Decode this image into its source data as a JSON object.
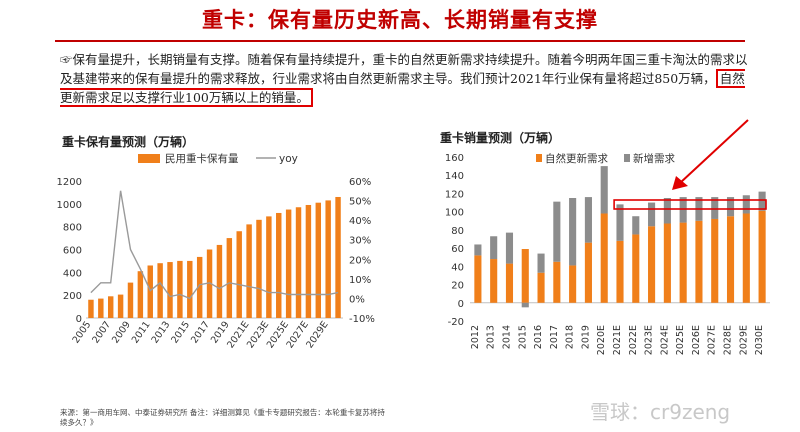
{
  "header": {
    "title": "重卡：保有量历史新高、长期销量有支撑"
  },
  "body": {
    "part1": "☞保有量提升，长期销量有支撑。随着保有量持续提升，重卡的自然更新需求持续提升。随着今明两年国三重卡淘汰的需求以及基建带来的保有量提升的需求释放，行业需求将由自然更新需求主导。我们预计2021年行业保有量将超过850万辆，",
    "highlight": "自然更新需求足以支撑行业100万辆以上的销量。"
  },
  "colors": {
    "orange": "#f07f1a",
    "gray": "#8c8c8c",
    "red": "#e00000",
    "line": "#9a9a9a"
  },
  "chart_data": [
    {
      "type": "bar+line",
      "title": "重卡保有量预测（万辆）",
      "legend": [
        "民用重卡保有量",
        "yoy"
      ],
      "categories": [
        "2005",
        "2006",
        "2007",
        "2008",
        "2009",
        "2010",
        "2011",
        "2012",
        "2013",
        "2014",
        "2015",
        "2016",
        "2017",
        "2018",
        "2019",
        "2020E",
        "2021E",
        "2022E",
        "2023E",
        "2024E",
        "2025E",
        "2026E",
        "2027E",
        "2028E",
        "2029E",
        "2030E"
      ],
      "x_tick_labels": [
        "2005",
        "2007",
        "2009",
        "2011",
        "2013",
        "2015",
        "2017",
        "2019",
        "2021E",
        "2023E",
        "2025E",
        "2027E",
        "2029E"
      ],
      "bar_values": [
        160,
        170,
        190,
        205,
        310,
        410,
        460,
        480,
        490,
        500,
        500,
        535,
        600,
        640,
        700,
        760,
        820,
        860,
        890,
        920,
        950,
        970,
        990,
        1010,
        1030,
        1060
      ],
      "yoy": [
        3,
        8,
        8,
        55,
        25,
        15,
        4,
        8,
        1,
        2,
        0,
        7,
        8,
        5,
        8,
        7,
        6,
        5,
        3,
        3,
        2,
        2,
        2,
        2,
        2,
        3
      ],
      "ylim_left": [
        0,
        1200
      ],
      "yticks_left": [
        "0",
        "200",
        "400",
        "600",
        "800",
        "1000",
        "1200"
      ],
      "ylim_right": [
        -10,
        60
      ],
      "yticks_right": [
        "-10%",
        "0%",
        "10%",
        "20%",
        "30%",
        "40%",
        "50%",
        "60%"
      ]
    },
    {
      "type": "stacked-bar",
      "title": "重卡销量预测（万辆）",
      "legend": [
        "自然更新需求",
        "新增需求"
      ],
      "categories": [
        "2012",
        "2013",
        "2014",
        "2015",
        "2016",
        "2017",
        "2018",
        "2019",
        "2020E",
        "2021E",
        "2022E",
        "2023E",
        "2024E",
        "2025E",
        "2026E",
        "2027E",
        "2028E",
        "2029E",
        "2030E"
      ],
      "series": [
        {
          "name": "自然更新需求",
          "values": [
            52,
            48,
            43,
            59,
            33,
            45,
            41,
            66,
            98,
            68,
            75,
            84,
            87,
            88,
            90,
            92,
            95,
            98,
            101
          ]
        },
        {
          "name": "新增需求",
          "values": [
            12,
            25,
            34,
            -5,
            21,
            66,
            74,
            50,
            52,
            40,
            20,
            26,
            28,
            28,
            26,
            24,
            21,
            20,
            21
          ]
        }
      ],
      "ylim": [
        -20,
        160
      ],
      "yticks": [
        "-20",
        "0",
        "20",
        "40",
        "60",
        "80",
        "100",
        "120",
        "140",
        "160"
      ]
    }
  ],
  "source": "来源：第一商用车网、中泰证券研究所 备注：详细测算见《重卡专题研究报告：本轮重卡复苏将持续多久？》",
  "watermark": "雪球：cr9zeng"
}
